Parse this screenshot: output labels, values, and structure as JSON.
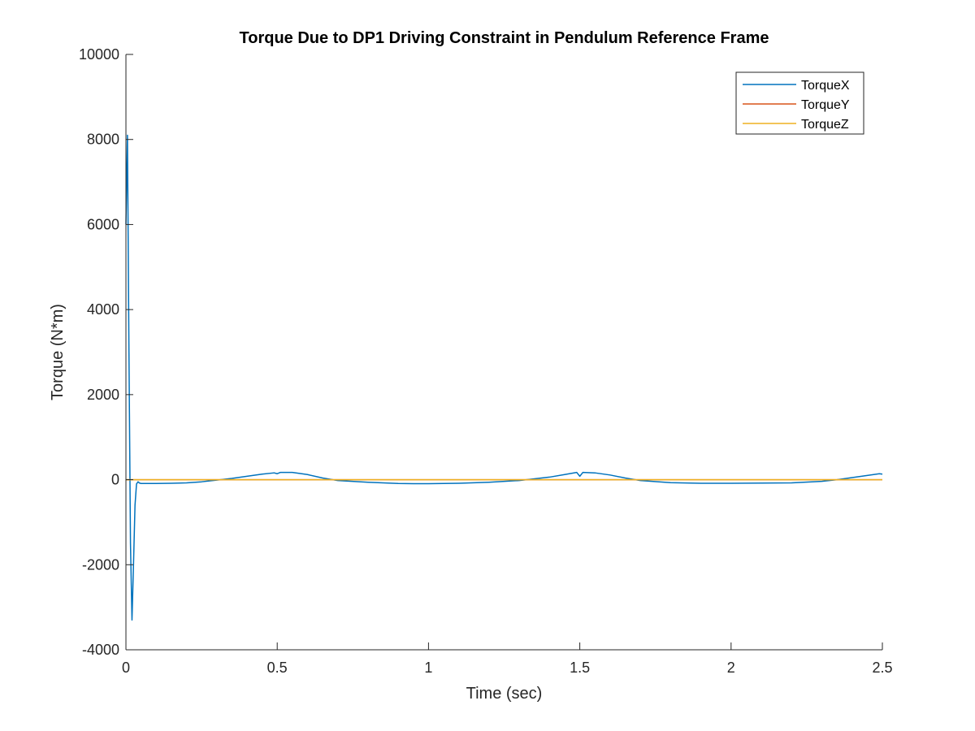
{
  "chart_data": {
    "type": "line",
    "title": "Torque Due to DP1 Driving Constraint in Pendulum Reference Frame",
    "xlabel": "Time (sec)",
    "ylabel": "Torque (N*m)",
    "xlim": [
      0,
      2.5
    ],
    "ylim": [
      -4000,
      10000
    ],
    "xticks": [
      0,
      0.5,
      1,
      1.5,
      2,
      2.5
    ],
    "xtick_labels": [
      "0",
      "0.5",
      "1",
      "1.5",
      "2",
      "2.5"
    ],
    "yticks": [
      -4000,
      -2000,
      0,
      2000,
      4000,
      6000,
      8000,
      10000
    ],
    "ytick_labels": [
      "-4000",
      "-2000",
      "0",
      "2000",
      "4000",
      "6000",
      "8000",
      "10000"
    ],
    "grid": false,
    "legend_position": "top-right",
    "series": [
      {
        "name": "TorqueX",
        "color": "#0072BD",
        "x": [
          0,
          0.005,
          0.01,
          0.015,
          0.02,
          0.025,
          0.03,
          0.035,
          0.04,
          0.045,
          0.05,
          0.06,
          0.1,
          0.15,
          0.2,
          0.25,
          0.3,
          0.35,
          0.4,
          0.45,
          0.49,
          0.5,
          0.51,
          0.55,
          0.6,
          0.65,
          0.7,
          0.8,
          0.9,
          0.95,
          1.0,
          1.1,
          1.2,
          1.3,
          1.4,
          1.45,
          1.49,
          1.5,
          1.51,
          1.55,
          1.6,
          1.65,
          1.7,
          1.8,
          1.9,
          2.0,
          2.1,
          2.2,
          2.3,
          2.35,
          2.4,
          2.45,
          2.49,
          2.5
        ],
        "y": [
          6000,
          8100,
          3000,
          -1500,
          -3300,
          -2000,
          -600,
          -100,
          -50,
          -80,
          -90,
          -90,
          -90,
          -85,
          -75,
          -50,
          -10,
          30,
          80,
          130,
          160,
          140,
          170,
          170,
          120,
          40,
          -20,
          -60,
          -90,
          -95,
          -95,
          -85,
          -60,
          -20,
          60,
          120,
          170,
          80,
          170,
          160,
          110,
          40,
          -20,
          -70,
          -85,
          -85,
          -80,
          -75,
          -40,
          0,
          50,
          100,
          140,
          130
        ]
      },
      {
        "name": "TorqueY",
        "color": "#D95319",
        "x": [
          0,
          2.5
        ],
        "y": [
          0,
          0
        ]
      },
      {
        "name": "TorqueZ",
        "color": "#EDB120",
        "x": [
          0,
          2.5
        ],
        "y": [
          0,
          0
        ]
      }
    ]
  }
}
